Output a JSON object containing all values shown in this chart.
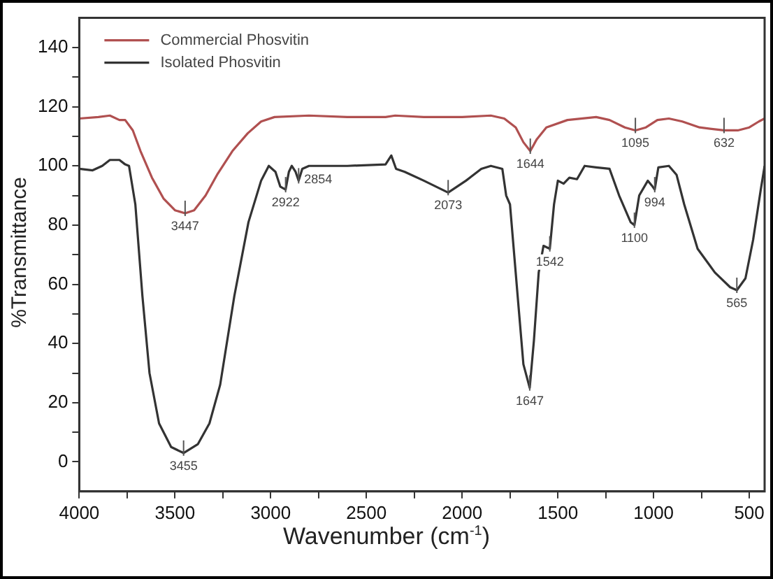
{
  "chart_data": {
    "type": "line",
    "xlabel": "Wavenumber (cm$^{-1}$)",
    "ylabel": "%Transmittance",
    "xlim": [
      4000,
      420
    ],
    "ylim": [
      -10,
      150
    ],
    "xticks": [
      4000,
      {
        "value": 3750,
        "label": null
      },
      3500,
      {
        "value": 3250,
        "label": null
      },
      3000,
      {
        "value": 2750,
        "label": null
      },
      2500,
      {
        "value": 2250,
        "label": null
      },
      2000,
      {
        "value": 1750,
        "label": null
      },
      1500,
      {
        "value": 1250,
        "label": null
      },
      1000,
      {
        "value": 750,
        "label": null
      },
      500
    ],
    "yticks": [
      0,
      {
        "value": 10,
        "label": null
      },
      20,
      {
        "value": 30,
        "label": null
      },
      40,
      {
        "value": 50,
        "label": null
      },
      60,
      {
        "value": 70,
        "label": null
      },
      80,
      {
        "value": 90,
        "label": null
      },
      100,
      {
        "value": 110,
        "label": null
      },
      120,
      {
        "value": 130,
        "label": null
      },
      140
    ],
    "grid": false,
    "legend": "top left",
    "marker": "none",
    "line_style": "solid",
    "series": [
      {
        "name": "Commercial Phosvitin",
        "color": "#b05050",
        "x": [
          4000,
          3900,
          3840,
          3790,
          3760,
          3720,
          3680,
          3620,
          3560,
          3500,
          3447,
          3400,
          3340,
          3280,
          3200,
          3120,
          3050,
          2980,
          2800,
          2600,
          2400,
          2350,
          2200,
          2000,
          1850,
          1780,
          1720,
          1680,
          1644,
          1610,
          1560,
          1450,
          1300,
          1230,
          1150,
          1095,
          1040,
          980,
          920,
          850,
          760,
          632,
          560,
          500,
          450,
          420
        ],
        "values": [
          116,
          116.5,
          117,
          115.5,
          115.5,
          112,
          105,
          96,
          89,
          85,
          84,
          85,
          90,
          97,
          105,
          111,
          115,
          116.5,
          117,
          116.5,
          116.5,
          117,
          116.5,
          116.5,
          117,
          116,
          113,
          108,
          105,
          109,
          113,
          115.5,
          116.5,
          115.5,
          113,
          112,
          113,
          115.5,
          116,
          115,
          113,
          112,
          112,
          113,
          115,
          116
        ]
      },
      {
        "name": "Isolated Phosvitin",
        "color": "#333333",
        "x": [
          4000,
          3930,
          3880,
          3840,
          3790,
          3760,
          3740,
          3707,
          3670,
          3633,
          3583,
          3520,
          3455,
          3380,
          3320,
          3264,
          3190,
          3116,
          3050,
          3010,
          2975,
          2950,
          2922,
          2905,
          2890,
          2870,
          2854,
          2835,
          2800,
          2600,
          2400,
          2370,
          2345,
          2300,
          2200,
          2073,
          1980,
          1900,
          1850,
          1790,
          1770,
          1750,
          1710,
          1680,
          1647,
          1625,
          1600,
          1575,
          1542,
          1520,
          1500,
          1470,
          1440,
          1400,
          1360,
          1300,
          1230,
          1180,
          1120,
          1100,
          1075,
          1030,
          1005,
          994,
          975,
          920,
          880,
          840,
          770,
          680,
          600,
          565,
          520,
          480,
          440,
          420
        ],
        "values": [
          99,
          98.5,
          100,
          102,
          102,
          100.5,
          100,
          87,
          56,
          30,
          13,
          5,
          3,
          6,
          13,
          26,
          56,
          81,
          95,
          100,
          98,
          93,
          92,
          98,
          100,
          98,
          95,
          99,
          100,
          100,
          100.5,
          103.5,
          99,
          98,
          95,
          91,
          95,
          99,
          100,
          99,
          90,
          87,
          56,
          33,
          25,
          41,
          64,
          73,
          72,
          87,
          95,
          94,
          96,
          95.5,
          100,
          99.5,
          99,
          90,
          81,
          80,
          90,
          95,
          93,
          92,
          99.5,
          100,
          97,
          87,
          72,
          64,
          59,
          58,
          62,
          75,
          92,
          100
        ]
      }
    ],
    "annotations": [
      {
        "text": "3447",
        "x": 3447,
        "y": 84
      },
      {
        "text": "3455",
        "x": 3455,
        "y": 3
      },
      {
        "text": "2922",
        "x": 2922,
        "y": 92
      },
      {
        "text": "2854",
        "x": 2854,
        "y": 95
      },
      {
        "text": "2073",
        "x": 2073,
        "y": 91
      },
      {
        "text": "1644",
        "x": 1644,
        "y": 105
      },
      {
        "text": "1647",
        "x": 1647,
        "y": 25
      },
      {
        "text": "1542",
        "x": 1542,
        "y": 72
      },
      {
        "text": "1100",
        "x": 1100,
        "y": 80
      },
      {
        "text": "994",
        "x": 994,
        "y": 92
      },
      {
        "text": "1095",
        "x": 1095,
        "y": 112
      },
      {
        "text": "632",
        "x": 632,
        "y": 112
      },
      {
        "text": "565",
        "x": 565,
        "y": 58
      }
    ]
  }
}
